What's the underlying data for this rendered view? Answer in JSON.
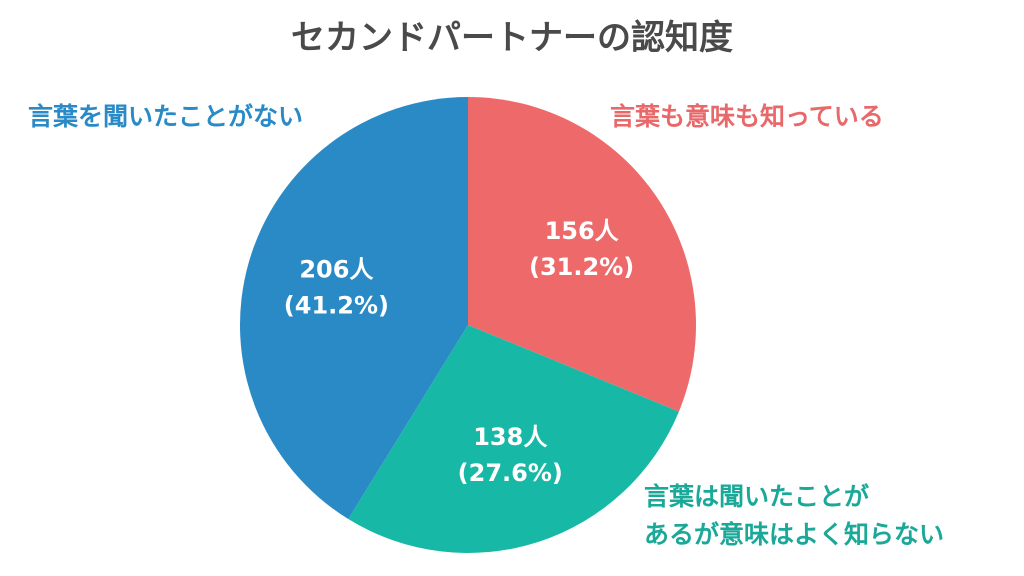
{
  "chart_data": {
    "type": "pie",
    "title": "セカンドパートナーの認知度",
    "start": "top",
    "direction": "clockwise",
    "slices": [
      {
        "label": "言葉も意味も知っている",
        "value": 156,
        "percent": "31.2%",
        "count_text": "156人",
        "percent_text": "(31.2%)",
        "color": "#ee6a6a",
        "label_color": "#e9686a"
      },
      {
        "label_lines": [
          "言葉は聞いたことが",
          "あるが意味はよく知らない"
        ],
        "value": 138,
        "percent": "27.6%",
        "count_text": "138人",
        "percent_text": "(27.6%)",
        "color": "#17b9a6",
        "label_color": "#1aa898"
      },
      {
        "label": "言葉を聞いたことがない",
        "value": 206,
        "percent": "41.2%",
        "count_text": "206人",
        "percent_text": "(41.2%)",
        "color": "#2a8ac6",
        "label_color": "#2a8ac6"
      }
    ]
  }
}
